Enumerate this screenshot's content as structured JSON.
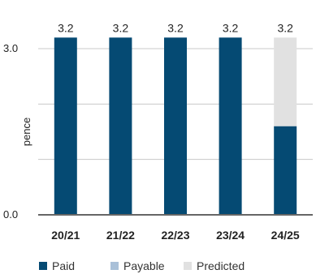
{
  "chart_data": {
    "type": "bar",
    "ylabel": "pence",
    "ylim": [
      0,
      3.0
    ],
    "yticks": [
      {
        "value": 0,
        "label": "0.0"
      },
      {
        "value": 1
      },
      {
        "value": 2
      },
      {
        "value": 3,
        "label": "3.0"
      }
    ],
    "categories": [
      "20/21",
      "21/22",
      "22/23",
      "23/24",
      "24/25"
    ],
    "series": [
      {
        "name": "Paid",
        "color": "#054a73",
        "values": [
          3.2,
          3.2,
          3.2,
          3.2,
          1.6
        ]
      },
      {
        "name": "Payable",
        "color": "#a9c0d8",
        "values": [
          0,
          0,
          0,
          0,
          0
        ]
      },
      {
        "name": "Predicted",
        "color": "#e1e1e1",
        "values": [
          0,
          0,
          0,
          0,
          1.6
        ]
      }
    ],
    "total_labels": [
      "3.2",
      "3.2",
      "3.2",
      "3.2",
      "3.2"
    ],
    "grid": true,
    "legend": "bottom-left"
  }
}
